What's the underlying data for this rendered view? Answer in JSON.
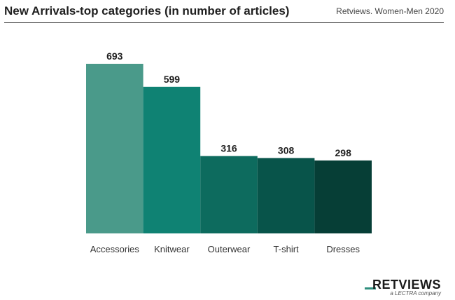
{
  "header": {
    "title": "New Arrivals-top categories (in number of articles)",
    "source": "Retviews. Women-Men 2020"
  },
  "logo": {
    "wordmark": "RETVIEWS",
    "tagline": "a LECTRA company"
  },
  "chart_data": {
    "type": "bar",
    "title": "New Arrivals-top categories (in number of articles)",
    "categories": [
      "Accessories",
      "Knitwear",
      "Outerwear",
      "T-shirt",
      "Dresses"
    ],
    "values": [
      693,
      599,
      316,
      308,
      298
    ],
    "colors": [
      "#4a9a8a",
      "#0f8273",
      "#0d6b5e",
      "#08544a",
      "#063e36"
    ],
    "xlabel": "",
    "ylabel": "",
    "ylim": [
      0,
      693
    ],
    "grid": false,
    "legend": "none"
  }
}
